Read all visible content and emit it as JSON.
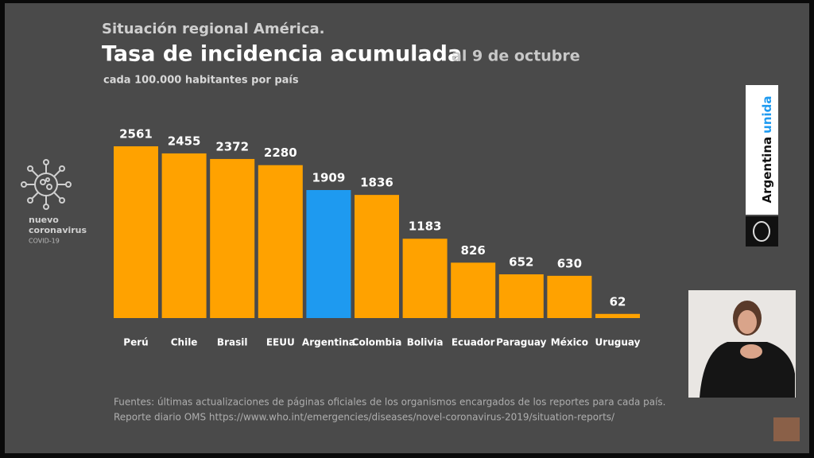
{
  "chart_data": {
    "type": "bar",
    "supertitle": "Situación regional América.",
    "title": "Tasa de incidencia acumulada",
    "date": "al 9 de octubre",
    "subtitle": "cada 100.000 habitantes por país",
    "categories": [
      "Perú",
      "Chile",
      "Brasil",
      "EEUU",
      "Argentina",
      "Colombia",
      "Bolivia",
      "Ecuador",
      "Paraguay",
      "México",
      "Uruguay"
    ],
    "values": [
      2561,
      2455,
      2372,
      2280,
      1909,
      1836,
      1183,
      826,
      652,
      630,
      62
    ],
    "colors": [
      "#ffa200",
      "#ffa200",
      "#ffa200",
      "#ffa200",
      "#1e9af0",
      "#ffa200",
      "#ffa200",
      "#ffa200",
      "#ffa200",
      "#ffa200",
      "#ffa200"
    ],
    "sources": [
      "Fuentes: últimas actualizaciones de páginas oficiales de los organismos encargados de los reportes para cada país.",
      "Reporte diario OMS https://www.who.int/emergencies/diseases/novel-coronavirus-2019/situation-reports/"
    ]
  },
  "logo": {
    "lines": [
      "nuevo",
      "coronavirus"
    ],
    "tag": "COVID-19"
  },
  "brand": {
    "first": "Argentina",
    "second": "unida"
  }
}
